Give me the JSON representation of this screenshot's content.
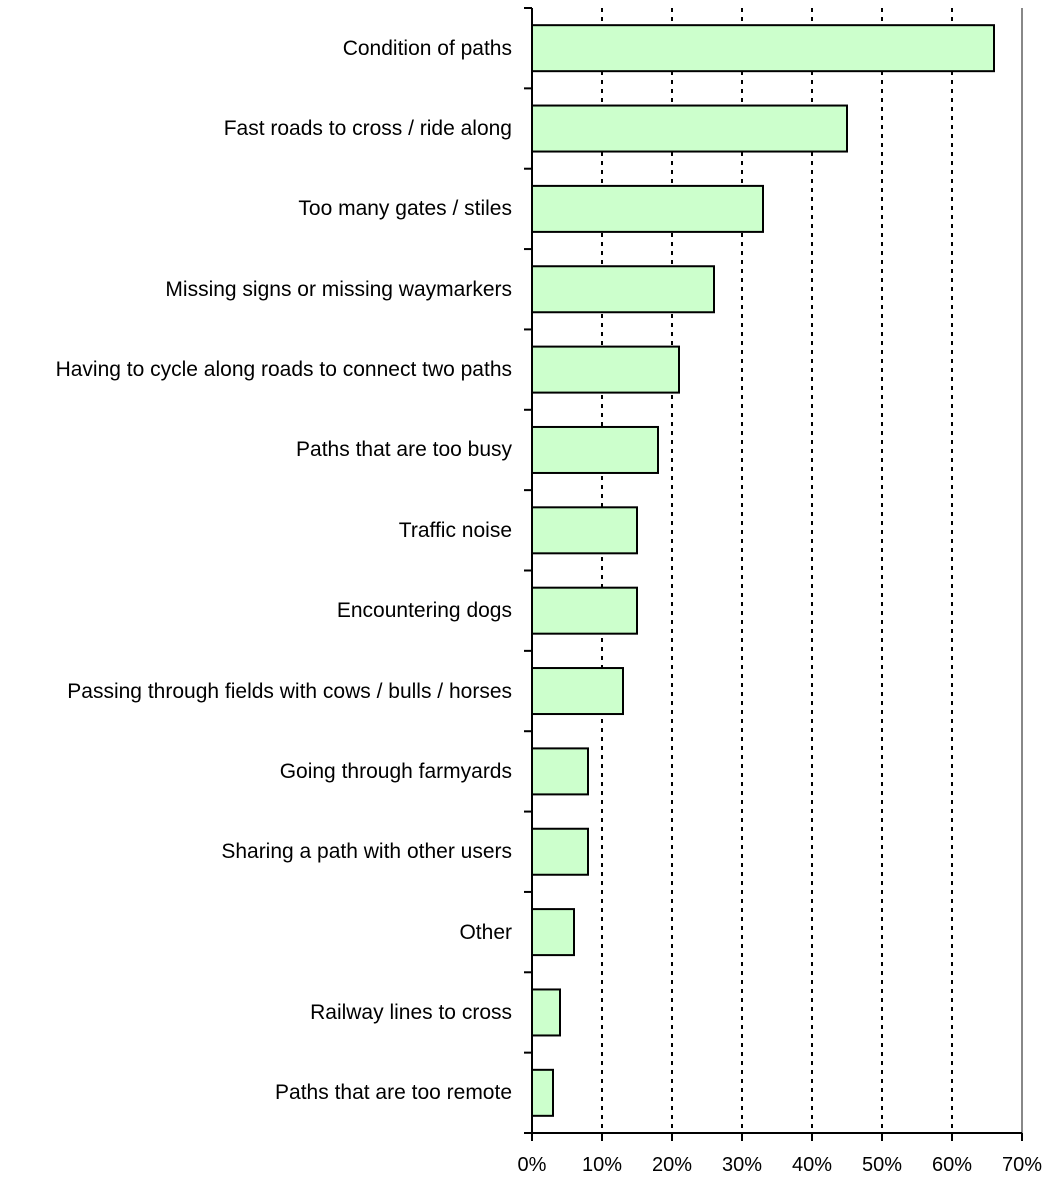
{
  "chart_data": {
    "type": "hbar",
    "categories": [
      "Condition of paths",
      "Fast roads to cross / ride along",
      "Too many gates / stiles",
      "Missing signs or missing waymarkers",
      "Having to cycle along roads to connect two paths",
      "Paths that are too busy",
      "Traffic noise",
      "Encountering dogs",
      "Passing through fields with cows / bulls / horses",
      "Going through farmyards",
      "Sharing a path with other users",
      "Other",
      "Railway lines to cross",
      "Paths that are too remote"
    ],
    "values": [
      66,
      45,
      33,
      26,
      21,
      18,
      15,
      15,
      13,
      8,
      8,
      6,
      4,
      3
    ],
    "color": "#ccffcc",
    "xlim": [
      0,
      70
    ],
    "xticks": [
      {
        "value": 0,
        "label": "0%"
      },
      {
        "value": 10,
        "label": "10%"
      },
      {
        "value": 20,
        "label": "20%"
      },
      {
        "value": 30,
        "label": "30%"
      },
      {
        "value": 40,
        "label": "40%"
      },
      {
        "value": 50,
        "label": "50%"
      },
      {
        "value": 60,
        "label": "60%"
      },
      {
        "value": 70,
        "label": "70%"
      }
    ],
    "grid": true
  }
}
